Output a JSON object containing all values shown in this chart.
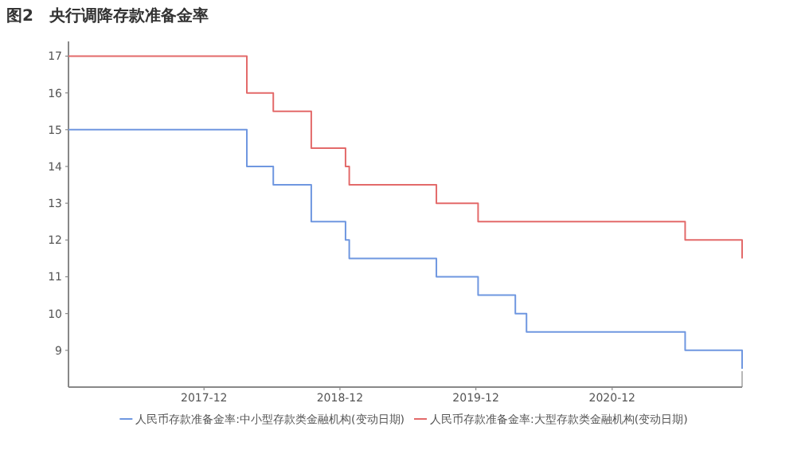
{
  "chart_data": {
    "type": "step",
    "title": "图2　央行调降存款准备金率",
    "xlim": [
      "2017-01-01",
      "2021-12-15"
    ],
    "xticks": [
      {
        "value": "2017-12-31",
        "label": "2017-12"
      },
      {
        "value": "2018-12-31",
        "label": "2018-12"
      },
      {
        "value": "2019-12-31",
        "label": "2019-12"
      },
      {
        "value": "2020-12-31",
        "label": "2020-12"
      }
    ],
    "ylim": [
      8,
      17.4
    ],
    "yticks": [
      9,
      10,
      11,
      12,
      13,
      14,
      15,
      16,
      17
    ],
    "grid": false,
    "legend": "bottom",
    "marker": "none",
    "line_style": "solid",
    "series": [
      {
        "name": "人民币存款准备金率:中小型存款类金融机构(变动日期)",
        "color": "#6f97e0",
        "x": [
          "2017-01-01",
          "2018-04-25",
          "2018-07-05",
          "2018-10-15",
          "2019-01-15",
          "2019-01-25",
          "2019-09-16",
          "2020-01-06",
          "2020-04-15",
          "2020-05-15",
          "2021-07-15",
          "2021-12-15"
        ],
        "values": [
          15,
          14,
          13.5,
          12.5,
          12,
          11.5,
          11,
          10.5,
          10,
          9.5,
          9,
          8.5
        ]
      },
      {
        "name": "人民币存款准备金率:大型存款类金融机构(变动日期)",
        "color": "#e36a6a",
        "x": [
          "2017-01-01",
          "2018-04-25",
          "2018-07-05",
          "2018-10-15",
          "2019-01-15",
          "2019-01-25",
          "2019-09-16",
          "2020-01-06",
          "2021-07-15",
          "2021-12-15"
        ],
        "values": [
          17,
          16,
          15.5,
          14.5,
          14,
          13.5,
          13,
          12.5,
          12,
          11.5
        ]
      }
    ]
  }
}
